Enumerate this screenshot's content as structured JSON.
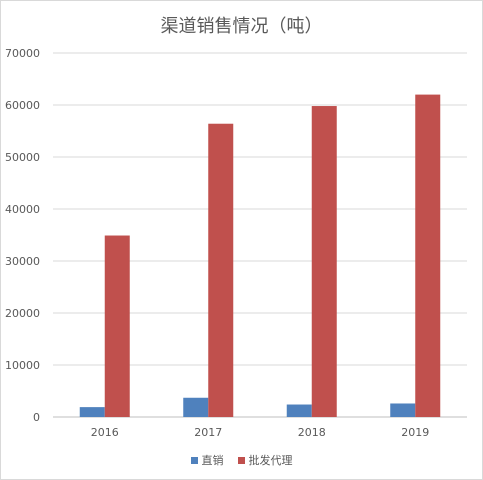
{
  "chart_data": {
    "type": "bar",
    "title": "渠道销售情况（吨）",
    "categories": [
      "2016",
      "2017",
      "2018",
      "2019"
    ],
    "series": [
      {
        "name": "直销",
        "values": [
          1900,
          3700,
          2400,
          2600
        ],
        "color": "#4F81BD"
      },
      {
        "name": "批发代理",
        "values": [
          34900,
          56400,
          59800,
          62000
        ],
        "color": "#C0504D"
      }
    ],
    "ylim": [
      0,
      70000
    ],
    "yticks": [
      "0",
      "10000",
      "20000",
      "30000",
      "40000",
      "50000",
      "60000",
      "70000"
    ],
    "grid": true,
    "legend": "bottom"
  }
}
